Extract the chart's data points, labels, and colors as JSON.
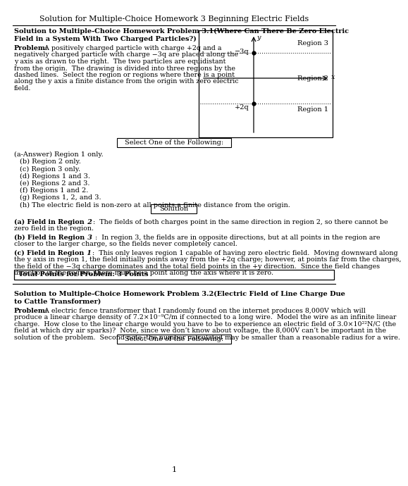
{
  "page_title": "Solution for Multiple-Choice Homework 3 Beginning Electric Fields",
  "p1_title_line1": "Solution to Multiple-Choice Homework Problem 3.1(Where Can There Be Zero Electric",
  "p1_title_line2": "Field in a System With Two Charged Particles?)",
  "prob1_lines": [
    "negatively charged particle with charge −3q are placed along the",
    "y axis as drawn to the right.  The two particles are equidistant",
    "from the origin.  The drawing is divided into three regions by the",
    "dashed lines.  Select the region or regions where there is a point",
    "along the y axis a finite distance from the origin with zero electric",
    "field."
  ],
  "prob1_line0_bold": "Problem:",
  "prob1_line0_rest": "  A positively charged particle with charge +2q and a",
  "select_box": "Select One of the Following:",
  "choices": [
    "(a-Answer) Region 1 only.",
    "(b) Region 2 only.",
    "(c) Region 3 only.",
    "(d) Regions 1 and 3.",
    "(e) Regions 2 and 3.",
    "(f) Regions 1 and 2.",
    "(g) Regions 1, 2, and 3.",
    "(h) The electric field is non-zero at all points a finite distance from the origin."
  ],
  "solution_label": "Solution",
  "sol_a_bold": "(a) Field in Region",
  "sol_a_num": " 2",
  "sol_a_rest": ":  The fields of both charges point in the same direction in region 2, so there cannot be",
  "sol_a_line2": "zero field in the region.",
  "sol_b_bold": "(b) Field in Region",
  "sol_b_num": " 3",
  "sol_b_rest": " :  In region 3, the fields are in opposite directions, but at all points in the region are",
  "sol_b_line2": "closer to the larger charge, so the fields never completely cancel.",
  "sol_c_bold": "(c) Field in Region",
  "sol_c_num": " 1",
  "sol_c_rest": ":  This only leaves region 1 capable of having zero electric field.  Moving downward along",
  "sol_c_line2": "the y axis in region 1, the field initially points away from the +2q charge; however, at points far from the charges,",
  "sol_c_line3": "the field of the −3q charge dominates and the total field points in the +y direction.  Since the field changes",
  "sol_c_line4": "direction in the region, there must be a point along the axis where it is zero.",
  "total_points": "Total Points for Problem: 3 Points",
  "p2_title_line1": "Solution to Multiple-Choice Homework Problem 3.2(Electric Field of Line Charge Due",
  "p2_title_line2": "to Cattle Transformer)",
  "p2_line0_bold": "Problem:",
  "p2_line0_rest": "  A electric fence transformer that I randomly found on the internet produces 8,000V which will",
  "p2_lines": [
    "produce a linear charge density of 7.2×10⁻⁹C/m if connected to a long wire.  Model the wire as an infinite linear",
    "charge.  How close to the linear charge would you have to be to experience an electric field of 3.0×10²²N/C (the",
    "field at which dry air sparks)?  Note, since we don’t know about voltage, the 8,000V can’t be important in the",
    "solution of the problem.  Second note, the number calculated may be smaller than a reasonable radius for a wire."
  ],
  "select_box2": "Select One of the Following:",
  "page_num": "1",
  "bg_color": "#ffffff",
  "text_color": "#000000",
  "title_fontsize": 8.0,
  "body_fontsize": 6.8,
  "bold_fontsize": 7.0,
  "choice_fontsize": 7.0
}
